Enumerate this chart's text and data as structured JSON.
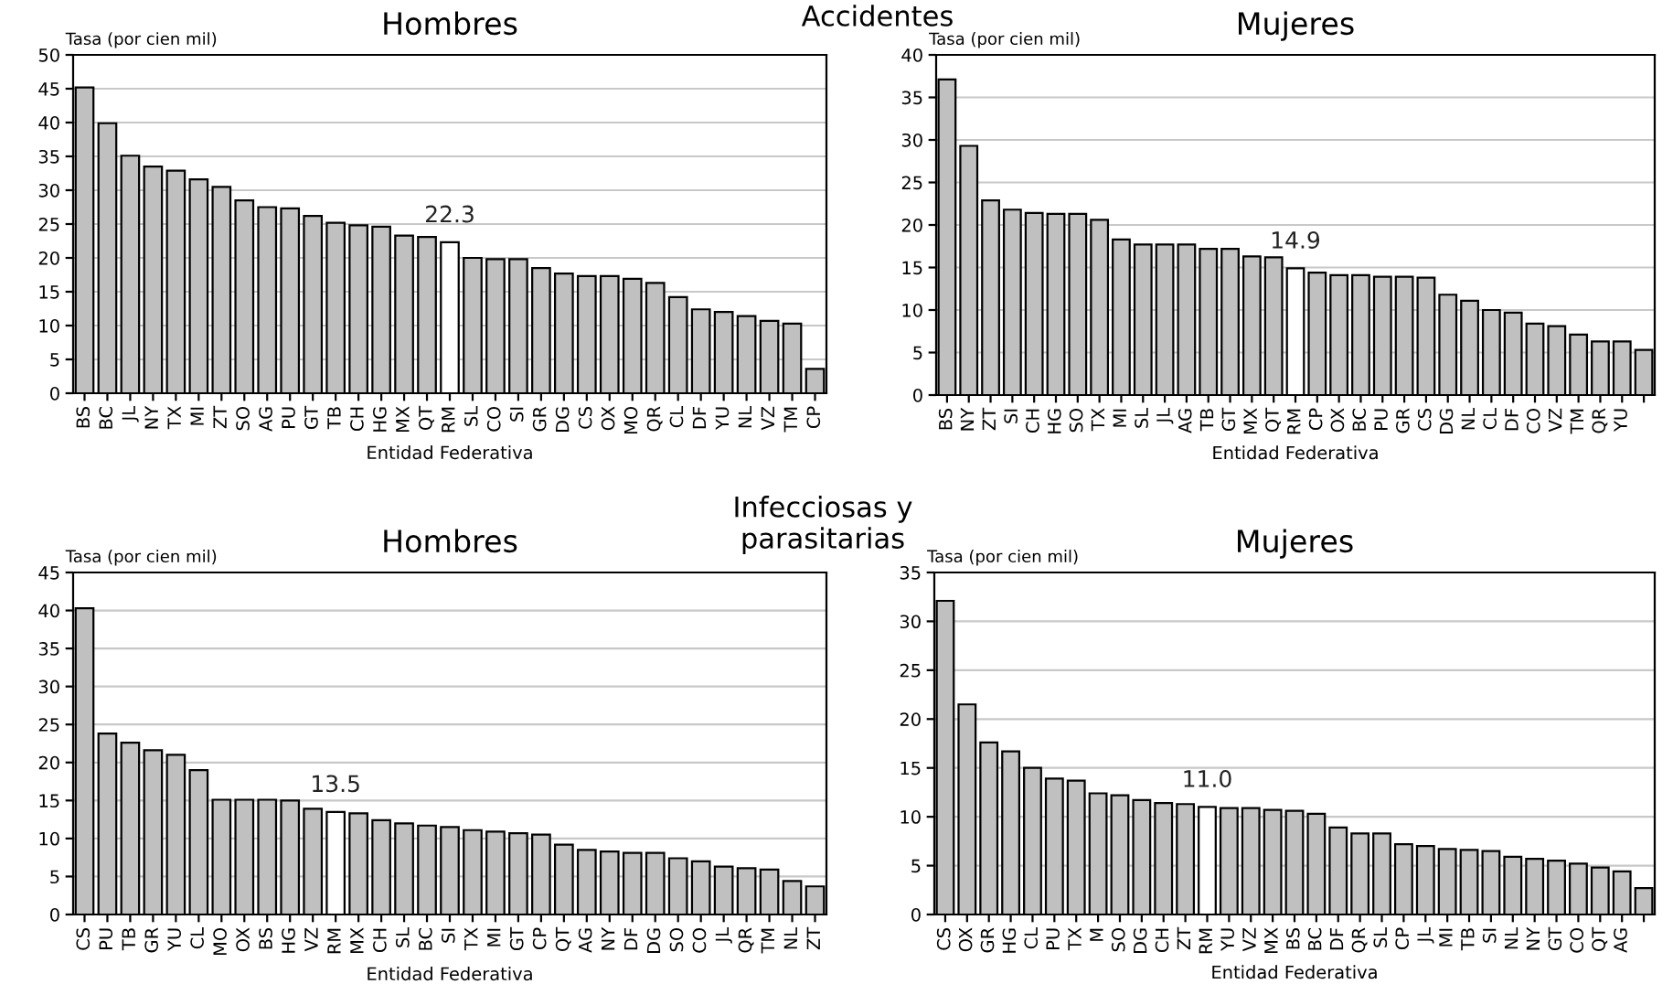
{
  "chart_data": [
    {
      "type": "bar",
      "title": "Hombres",
      "ylabel": "Tasa (por cien mil)",
      "xlabel": "Entidad Federativa",
      "annotations": [
        "Accidentes"
      ],
      "categories": [
        "BS",
        "BC",
        "JL",
        "NY",
        "TX",
        "MI",
        "ZT",
        "SO",
        "AG",
        "PU",
        "GT",
        "TB",
        "CH",
        "HG",
        "MX",
        "QT",
        "RM",
        "SL",
        "CO",
        "SI",
        "GR",
        "DG",
        "CS",
        "OX",
        "MO",
        "QR",
        "CL",
        "DF",
        "YU",
        "NL",
        "VZ",
        "TM",
        "CP"
      ],
      "values": [
        45.2,
        39.9,
        35.1,
        33.5,
        32.9,
        31.6,
        30.5,
        28.5,
        27.5,
        27.3,
        26.2,
        25.2,
        24.8,
        24.6,
        23.3,
        23.1,
        22.3,
        20.0,
        19.8,
        19.8,
        18.5,
        17.7,
        17.3,
        17.3,
        16.9,
        16.3,
        14.2,
        12.4,
        12.0,
        11.4,
        10.7,
        10.3,
        3.6
      ],
      "colors": [
        "#c0c0c0",
        "#c0c0c0",
        "#c0c0c0",
        "#c0c0c0",
        "#c0c0c0",
        "#c0c0c0",
        "#c0c0c0",
        "#c0c0c0",
        "#c0c0c0",
        "#c0c0c0",
        "#c0c0c0",
        "#c0c0c0",
        "#c0c0c0",
        "#c0c0c0",
        "#c0c0c0",
        "#c0c0c0",
        "#ffffff",
        "#c0c0c0",
        "#c0c0c0",
        "#c0c0c0",
        "#c0c0c0",
        "#c0c0c0",
        "#c0c0c0",
        "#c0c0c0",
        "#c0c0c0",
        "#c0c0c0",
        "#c0c0c0",
        "#c0c0c0",
        "#c0c0c0",
        "#c0c0c0",
        "#c0c0c0",
        "#c0c0c0",
        "#c0c0c0"
      ],
      "value_labels": [
        null,
        null,
        null,
        null,
        null,
        null,
        null,
        null,
        null,
        null,
        null,
        null,
        null,
        null,
        null,
        null,
        "22.3",
        null,
        null,
        null,
        null,
        null,
        null,
        null,
        null,
        null,
        null,
        null,
        null,
        null,
        null,
        null,
        null
      ],
      "ylim": [
        0,
        50
      ],
      "yticks": [
        0,
        5,
        10,
        15,
        20,
        25,
        30,
        35,
        40,
        45,
        50
      ],
      "grid": "y",
      "legend": false
    },
    {
      "type": "bar",
      "title": "Mujeres",
      "ylabel": "Tasa (por cien mil)",
      "xlabel": "Entidad Federativa",
      "categories": [
        "BS",
        "NY",
        "ZT",
        "SI",
        "CH",
        "HG",
        "SO",
        "TX",
        "MI",
        "SL",
        "JL",
        "AG",
        "TB",
        "GT",
        "MX",
        "QT",
        "RM",
        "CP",
        "OX",
        "BC",
        "PU",
        "GR",
        "CS",
        "DG",
        "NL",
        "CL",
        "DF",
        "CO",
        "VZ",
        "TM",
        "QR",
        "YU",
        null
      ],
      "values": [
        37.1,
        29.3,
        22.9,
        21.8,
        21.4,
        21.3,
        21.3,
        20.6,
        18.3,
        17.7,
        17.7,
        17.7,
        17.2,
        17.2,
        16.3,
        16.2,
        14.9,
        14.4,
        14.1,
        14.1,
        13.9,
        13.9,
        13.8,
        11.8,
        11.1,
        10.0,
        9.7,
        8.4,
        8.1,
        7.1,
        6.3,
        6.3,
        5.3
      ],
      "colors": [
        "#c0c0c0",
        "#c0c0c0",
        "#c0c0c0",
        "#c0c0c0",
        "#c0c0c0",
        "#c0c0c0",
        "#c0c0c0",
        "#c0c0c0",
        "#c0c0c0",
        "#c0c0c0",
        "#c0c0c0",
        "#c0c0c0",
        "#c0c0c0",
        "#c0c0c0",
        "#c0c0c0",
        "#c0c0c0",
        "#ffffff",
        "#c0c0c0",
        "#c0c0c0",
        "#c0c0c0",
        "#c0c0c0",
        "#c0c0c0",
        "#c0c0c0",
        "#c0c0c0",
        "#c0c0c0",
        "#c0c0c0",
        "#c0c0c0",
        "#c0c0c0",
        "#c0c0c0",
        "#c0c0c0",
        "#c0c0c0",
        "#c0c0c0",
        "#c0c0c0"
      ],
      "value_labels": [
        null,
        null,
        null,
        null,
        null,
        null,
        null,
        null,
        null,
        null,
        null,
        null,
        null,
        null,
        null,
        null,
        "14.9",
        null,
        null,
        null,
        null,
        null,
        null,
        null,
        null,
        null,
        null,
        null,
        null,
        null,
        null,
        null,
        null
      ],
      "ylim": [
        0,
        40
      ],
      "yticks": [
        0,
        5,
        10,
        15,
        20,
        25,
        30,
        35,
        40
      ],
      "grid": "y",
      "legend": false
    },
    {
      "type": "bar",
      "title": "Hombres",
      "ylabel": "Tasa (por cien mil)",
      "xlabel": "Entidad Federativa",
      "annotations": [
        "Infecciosas y\nparasitarias"
      ],
      "categories": [
        "CS",
        "PU",
        "TB",
        "GR",
        "YU",
        "CL",
        "MO",
        "OX",
        "BS",
        "HG",
        "VZ",
        "RM",
        "MX",
        "CH",
        "SL",
        "BC",
        "SI",
        "TX",
        "MI",
        "GT",
        "CP",
        "QT",
        "AG",
        "NY",
        "DF",
        "DG",
        "SO",
        "CO",
        "JL",
        "QR",
        "TM",
        "NL",
        "ZT"
      ],
      "values": [
        40.3,
        23.8,
        22.6,
        21.6,
        21.0,
        19.0,
        15.1,
        15.1,
        15.1,
        15.0,
        13.9,
        13.5,
        13.3,
        12.4,
        12.0,
        11.7,
        11.5,
        11.1,
        10.9,
        10.7,
        10.5,
        9.2,
        8.5,
        8.3,
        8.1,
        8.1,
        7.4,
        7.0,
        6.3,
        6.1,
        5.9,
        4.4,
        3.7
      ],
      "colors": [
        "#c0c0c0",
        "#c0c0c0",
        "#c0c0c0",
        "#c0c0c0",
        "#c0c0c0",
        "#c0c0c0",
        "#c0c0c0",
        "#c0c0c0",
        "#c0c0c0",
        "#c0c0c0",
        "#c0c0c0",
        "#ffffff",
        "#c0c0c0",
        "#c0c0c0",
        "#c0c0c0",
        "#c0c0c0",
        "#c0c0c0",
        "#c0c0c0",
        "#c0c0c0",
        "#c0c0c0",
        "#c0c0c0",
        "#c0c0c0",
        "#c0c0c0",
        "#c0c0c0",
        "#c0c0c0",
        "#c0c0c0",
        "#c0c0c0",
        "#c0c0c0",
        "#c0c0c0",
        "#c0c0c0",
        "#c0c0c0",
        "#c0c0c0",
        "#c0c0c0"
      ],
      "value_labels": [
        null,
        null,
        null,
        null,
        null,
        null,
        null,
        null,
        null,
        null,
        null,
        "13.5",
        null,
        null,
        null,
        null,
        null,
        null,
        null,
        null,
        null,
        null,
        null,
        null,
        null,
        null,
        null,
        null,
        null,
        null,
        null,
        null,
        null
      ],
      "ylim": [
        0,
        45
      ],
      "yticks": [
        0,
        5,
        10,
        15,
        20,
        25,
        30,
        35,
        40,
        45
      ],
      "grid": "y",
      "legend": false
    },
    {
      "type": "bar",
      "title": "Mujeres",
      "ylabel": "Tasa (por cien mil)",
      "xlabel": "Entidad Federativa",
      "categories": [
        "CS",
        "OX",
        "GR",
        "HG",
        "CL",
        "PU",
        "TX",
        "M",
        "SO",
        "DG",
        "CH",
        "ZT",
        "RM",
        "YU",
        "VZ",
        "MX",
        "BS",
        "BC",
        "DF",
        "QR",
        "SL",
        "CP",
        "JL",
        "MI",
        "TB",
        "SI",
        "NL",
        "NY",
        "GT",
        "CO",
        "QT",
        "AG",
        null
      ],
      "values": [
        32.1,
        21.5,
        17.6,
        16.7,
        15.0,
        13.9,
        13.7,
        12.4,
        12.2,
        11.7,
        11.4,
        11.3,
        11.0,
        10.9,
        10.9,
        10.7,
        10.6,
        10.3,
        8.9,
        8.3,
        8.3,
        7.2,
        7.0,
        6.7,
        6.6,
        6.5,
        5.9,
        5.7,
        5.5,
        5.2,
        4.8,
        4.4,
        2.7
      ],
      "colors": [
        "#c0c0c0",
        "#c0c0c0",
        "#c0c0c0",
        "#c0c0c0",
        "#c0c0c0",
        "#c0c0c0",
        "#c0c0c0",
        "#c0c0c0",
        "#c0c0c0",
        "#c0c0c0",
        "#c0c0c0",
        "#c0c0c0",
        "#ffffff",
        "#c0c0c0",
        "#c0c0c0",
        "#c0c0c0",
        "#c0c0c0",
        "#c0c0c0",
        "#c0c0c0",
        "#c0c0c0",
        "#c0c0c0",
        "#c0c0c0",
        "#c0c0c0",
        "#c0c0c0",
        "#c0c0c0",
        "#c0c0c0",
        "#c0c0c0",
        "#c0c0c0",
        "#c0c0c0",
        "#c0c0c0",
        "#c0c0c0",
        "#c0c0c0",
        "#c0c0c0"
      ],
      "value_labels": [
        null,
        null,
        null,
        null,
        null,
        null,
        null,
        null,
        null,
        null,
        null,
        null,
        "11.0",
        null,
        null,
        null,
        null,
        null,
        null,
        null,
        null,
        null,
        null,
        null,
        null,
        null,
        null,
        null,
        null,
        null,
        null,
        null,
        null
      ],
      "ylim": [
        0,
        35
      ],
      "yticks": [
        0,
        5,
        10,
        15,
        20,
        25,
        30,
        35
      ],
      "grid": "y",
      "legend": false
    }
  ]
}
